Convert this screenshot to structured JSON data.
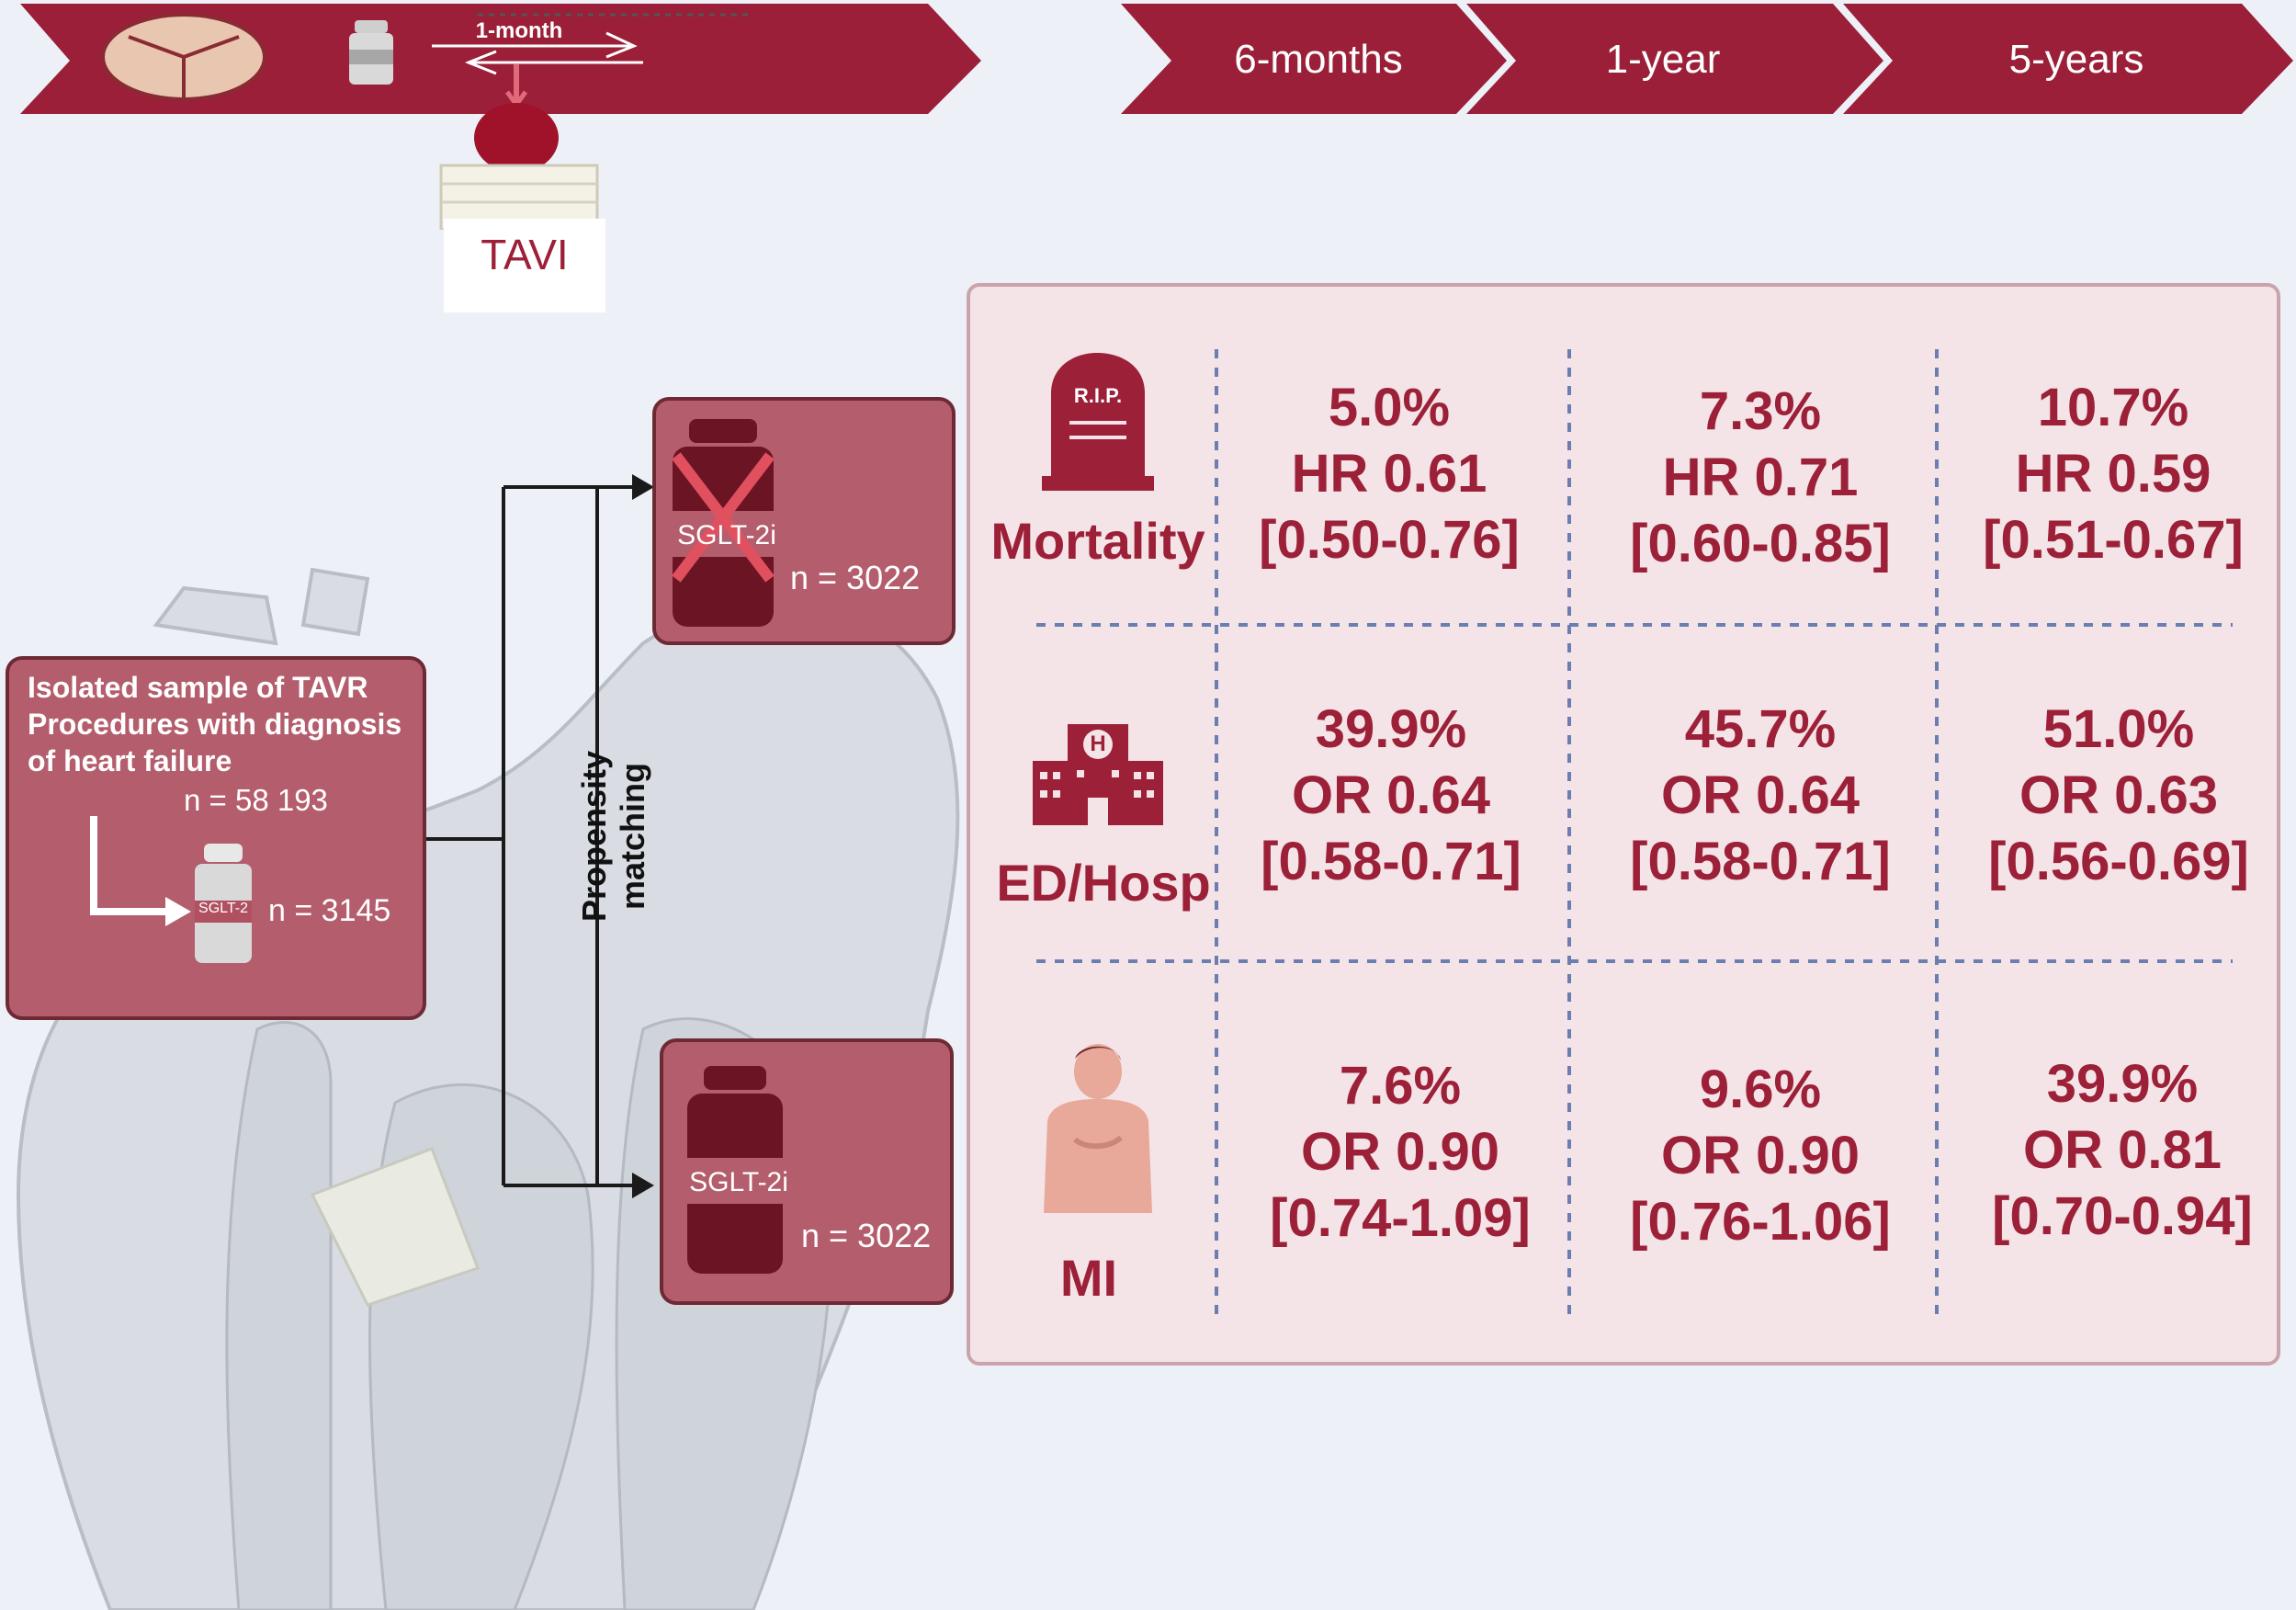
{
  "banner": {
    "month_label": "1-month",
    "tavi_label": "TAVI",
    "timepoints": [
      "6-months",
      "1-year",
      "5-years"
    ]
  },
  "cohort": {
    "description": "Isolated sample of TAVR Procedures with diagnosis of heart failure",
    "n_total": "n = 58 193",
    "n_sglt2": "n = 3145",
    "bottle_label": "SGLT-2"
  },
  "matching_label": "Propensity matching",
  "groups": {
    "no_sglt2": {
      "bottle_label": "SGLT-2i",
      "n": "n = 3022"
    },
    "sglt2": {
      "bottle_label": "SGLT-2i",
      "n": "n = 3022"
    }
  },
  "outcomes": [
    {
      "label": "Mortality",
      "icon_text": "R.I.P.",
      "values": [
        {
          "pct": "5.0%",
          "ratio": "HR 0.61",
          "ci": "[0.50-0.76]"
        },
        {
          "pct": "7.3%",
          "ratio": "HR 0.71",
          "ci": "[0.60-0.85]"
        },
        {
          "pct": "10.7%",
          "ratio": "HR 0.59",
          "ci": "[0.51-0.67]"
        }
      ]
    },
    {
      "label": "ED/Hosp",
      "icon_text": "H",
      "values": [
        {
          "pct": "39.9%",
          "ratio": "OR 0.64",
          "ci": "[0.58-0.71]"
        },
        {
          "pct": "45.7%",
          "ratio": "OR 0.64",
          "ci": "[0.58-0.71]"
        },
        {
          "pct": "51.0%",
          "ratio": "OR 0.63",
          "ci": "[0.56-0.69]"
        }
      ]
    },
    {
      "label": "MI",
      "icon_text": "",
      "values": [
        {
          "pct": "7.6%",
          "ratio": "OR 0.90",
          "ci": "[0.74-1.09]"
        },
        {
          "pct": "9.6%",
          "ratio": "OR 0.90",
          "ci": "[0.76-1.06]"
        },
        {
          "pct": "39.9%",
          "ratio": "OR 0.81",
          "ci": "[0.70-0.94]"
        }
      ]
    }
  ],
  "colors": {
    "banner": "#9b1f38",
    "text_accent": "#9c2038",
    "box_fill": "#b45d6c",
    "panel_fill": "#f4e3e7",
    "bottle_dark": "#6b1423"
  }
}
